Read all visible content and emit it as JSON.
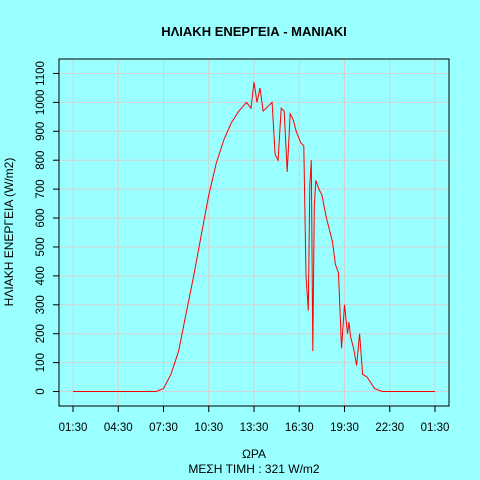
{
  "chart_data": {
    "type": "line",
    "title": "ΗΛΙΑΚΗ ΕΝΕΡΓΕΙΑ - ΜΑΝΙΑΚΙ",
    "xlabel": "ΩΡΑ",
    "ylabel": "ΗΛΙΑΚΗ ΕΝΕΡΓΕΙΑ (W/m2)",
    "subtitle": "ΜΕΣΗ ΤΙΜΗ : 321 W/m2",
    "x_tick_labels": [
      "01:30",
      "04:30",
      "07:30",
      "10:30",
      "13:30",
      "16:30",
      "19:30",
      "22:30",
      "01:30"
    ],
    "y_tick_labels": [
      "0",
      "100",
      "200",
      "300",
      "400",
      "500",
      "600",
      "700",
      "800",
      "900",
      "1000",
      "1100"
    ],
    "ylim": [
      -50,
      1150
    ],
    "grid": true,
    "line_color": "#ff0000",
    "series": [
      {
        "x": [
          0,
          3,
          5.5,
          6,
          6.5,
          7,
          7.5,
          8,
          8.5,
          9,
          9.5,
          10,
          10.5,
          11,
          11.5,
          11.8,
          12,
          12.2,
          12.4,
          12.6,
          13,
          13.2,
          13.4,
          13.6,
          13.8,
          14,
          14.2,
          14.4,
          14.6,
          14.8,
          15.1,
          15.3,
          15.45,
          15.6,
          15.7,
          15.8,
          15.9,
          16,
          16.1,
          16.3,
          16.5,
          16.8,
          17.2,
          17.4,
          17.6,
          17.8,
          18,
          18.2,
          18.3,
          18.4,
          18.6,
          18.8,
          19,
          19.2,
          19.5,
          20,
          20.5,
          24
        ],
        "y": [
          0,
          0,
          0,
          10,
          60,
          140,
          270,
          400,
          540,
          680,
          790,
          870,
          930,
          970,
          1000,
          980,
          1070,
          1000,
          1050,
          970,
          990,
          1000,
          820,
          800,
          980,
          970,
          760,
          960,
          940,
          900,
          860,
          850,
          400,
          280,
          710,
          800,
          140,
          640,
          730,
          700,
          680,
          600,
          520,
          440,
          410,
          150,
          300,
          200,
          240,
          190,
          150,
          90,
          200,
          60,
          50,
          10,
          0,
          0
        ]
      }
    ]
  }
}
